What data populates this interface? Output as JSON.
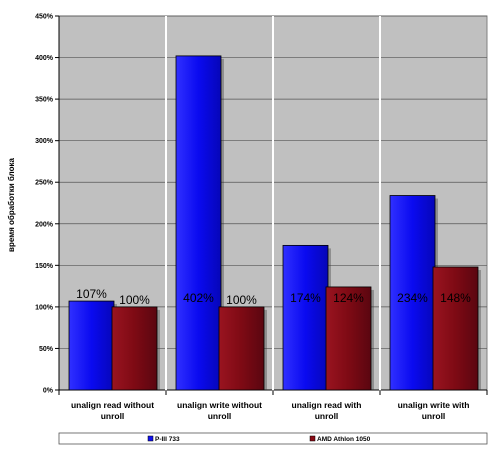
{
  "chart_data": {
    "type": "bar",
    "categories": [
      "unalign read  without unroll",
      "unalign write without unroll",
      "unalign read  with unroll",
      "unalign write with unroll"
    ],
    "category_lines": [
      [
        "unalign read  without",
        "unroll"
      ],
      [
        "unalign write without",
        "unroll"
      ],
      [
        "unalign read  with",
        "unroll"
      ],
      [
        "unalign write with",
        "unroll"
      ]
    ],
    "series": [
      {
        "name": "P-III 733",
        "values": [
          107,
          402,
          174,
          234
        ],
        "labels": [
          "107%",
          "402%",
          "174%",
          "234%"
        ],
        "color": "#1010f0"
      },
      {
        "name": "AMD Athlon 1050",
        "values": [
          100,
          100,
          124,
          148
        ],
        "labels": [
          "100%",
          "100%",
          "124%",
          "148%"
        ],
        "color": "#8b0b16"
      }
    ],
    "ylabel": "время обработки блока",
    "xlabel": "",
    "ylim": [
      0,
      450
    ],
    "yticks": [
      "0%",
      "50%",
      "100%",
      "150%",
      "200%",
      "250%",
      "300%",
      "350%",
      "400%",
      "450%"
    ],
    "grid": true,
    "legend_position": "bottom",
    "plot_background": "#c0c0c0"
  }
}
